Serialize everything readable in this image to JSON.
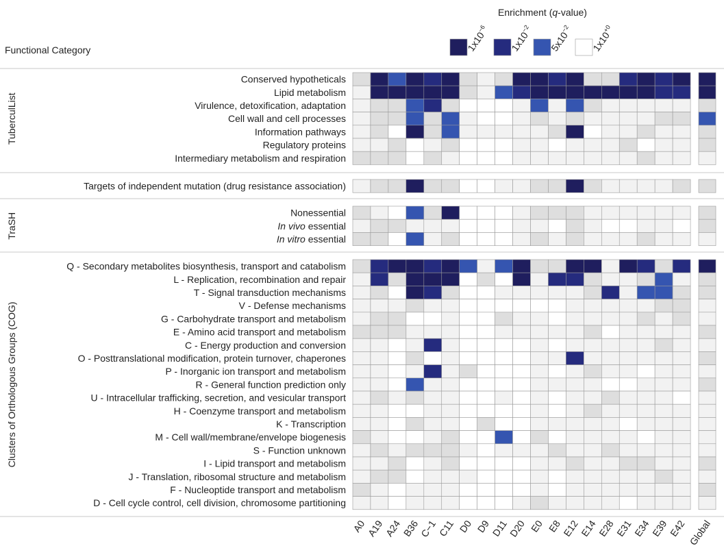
{
  "chart_data": {
    "type": "heatmap",
    "title": "Enrichment (q-value)",
    "title_prefix": "Enrichment (",
    "title_var": "q",
    "title_suffix": "-value)",
    "row_header": "Functional Category",
    "legend": [
      {
        "label": "1x10^-6",
        "base": "1x10",
        "exp": "−6",
        "color": "#1f1e5e"
      },
      {
        "label": "1x10^-2",
        "base": "1x10",
        "exp": "−2",
        "color": "#252b7e"
      },
      {
        "label": "5x10^-2",
        "base": "5x10",
        "exp": "−2",
        "color": "#3555b0"
      },
      {
        "label": "1x10^+0",
        "base": "1x10",
        "exp": "+0",
        "color": "#ffffff"
      }
    ],
    "columns": [
      "A0",
      "A19",
      "A24",
      "B36",
      "C−1",
      "C11",
      "D0",
      "D9",
      "D11",
      "D20",
      "E0",
      "E8",
      "E12",
      "E14",
      "E28",
      "E31",
      "E34",
      "E39",
      "E42"
    ],
    "global_column": "Global",
    "value_scale": "level: 0 = white, 1 = faint grey, 2 = light grey, 3 = mid blue (~5x10^-2), 4 = dark blue (~1x10^-2), 5 = darkest navy (~1x10^-6)",
    "groups": [
      {
        "name": "TuberculList",
        "rows": [
          {
            "label": "Conserved hypotheticals",
            "values": [
              2,
              5,
              3,
              5,
              4,
              5,
              2,
              1,
              2,
              5,
              5,
              4,
              5,
              2,
              2,
              4,
              5,
              4,
              5
            ],
            "global": 5
          },
          {
            "label": "Lipid metabolism",
            "values": [
              1,
              5,
              5,
              5,
              5,
              5,
              2,
              1,
              3,
              4,
              5,
              5,
              5,
              5,
              5,
              5,
              5,
              4,
              4
            ],
            "global": 5
          },
          {
            "label": "Virulence, detoxification, adaptation",
            "values": [
              1,
              2,
              2,
              3,
              4,
              2,
              0,
              0,
              0,
              1,
              3,
              1,
              3,
              2,
              1,
              1,
              1,
              1,
              1
            ],
            "global": 2
          },
          {
            "label": "Cell wall and cell processes",
            "values": [
              1,
              2,
              2,
              3,
              2,
              3,
              1,
              0,
              0,
              1,
              2,
              1,
              2,
              1,
              1,
              1,
              1,
              2,
              2
            ],
            "global": 3
          },
          {
            "label": "Information pathways",
            "values": [
              1,
              2,
              0,
              5,
              2,
              3,
              1,
              1,
              1,
              1,
              1,
              2,
              5,
              0,
              1,
              1,
              2,
              1,
              1
            ],
            "global": 2
          },
          {
            "label": "Regulatory proteins",
            "values": [
              1,
              1,
              2,
              0,
              1,
              2,
              0,
              0,
              0,
              1,
              1,
              0,
              1,
              1,
              1,
              2,
              0,
              1,
              1
            ],
            "global": 2
          },
          {
            "label": "Intermediary metabolism and respiration",
            "values": [
              2,
              2,
              2,
              0,
              2,
              1,
              0,
              0,
              0,
              1,
              1,
              1,
              1,
              1,
              1,
              1,
              2,
              1,
              1
            ],
            "global": 1
          }
        ]
      },
      {
        "name": "",
        "rows": [
          {
            "label": "Targets of independent mutation (drug resistance association)",
            "values": [
              1,
              2,
              2,
              5,
              2,
              2,
              0,
              0,
              1,
              1,
              2,
              2,
              5,
              2,
              1,
              1,
              1,
              1,
              2
            ],
            "global": 2
          }
        ]
      },
      {
        "name": "TraSH",
        "rows": [
          {
            "label": "Nonessential",
            "values": [
              2,
              1,
              0,
              3,
              2,
              5,
              0,
              0,
              0,
              1,
              2,
              2,
              2,
              1,
              1,
              1,
              1,
              1,
              1
            ],
            "global": 2
          },
          {
            "label": "essential",
            "italic_prefix": "In vivo",
            "values": [
              1,
              2,
              2,
              1,
              1,
              1,
              0,
              0,
              0,
              1,
              1,
              0,
              2,
              1,
              0,
              0,
              1,
              1,
              0
            ],
            "global": 2
          },
          {
            "label": "essential",
            "italic_prefix": "In vitro",
            "values": [
              2,
              2,
              0,
              3,
              1,
              2,
              0,
              0,
              0,
              1,
              2,
              1,
              2,
              1,
              1,
              1,
              2,
              1,
              1
            ],
            "global": 1
          }
        ]
      },
      {
        "name": "Clusters of Orthologous Groups (COG)",
        "rows": [
          {
            "label": "Q - Secondary metabolites biosynthesis, transport and catabolism",
            "values": [
              2,
              4,
              5,
              5,
              4,
              5,
              3,
              1,
              3,
              5,
              2,
              2,
              5,
              5,
              1,
              5,
              4,
              2,
              4
            ],
            "global": 5
          },
          {
            "label": "L - Replication, recombination and repair",
            "values": [
              1,
              4,
              2,
              5,
              5,
              5,
              0,
              2,
              0,
              5,
              1,
              4,
              4,
              2,
              1,
              1,
              2,
              3,
              1
            ],
            "global": 2
          },
          {
            "label": "T - Signal transduction mechanisms",
            "values": [
              1,
              2,
              0,
              5,
              4,
              2,
              0,
              0,
              1,
              1,
              1,
              1,
              1,
              2,
              4,
              1,
              3,
              3,
              2
            ],
            "global": 2
          },
          {
            "label": "V - Defense mechanisms",
            "values": [
              1,
              1,
              1,
              2,
              1,
              1,
              0,
              0,
              0,
              0,
              0,
              0,
              1,
              1,
              1,
              1,
              1,
              2,
              2
            ],
            "global": 1
          },
          {
            "label": "G - Carbohydrate transport and metabolism",
            "values": [
              1,
              2,
              2,
              0,
              0,
              1,
              0,
              0,
              2,
              1,
              1,
              0,
              1,
              1,
              1,
              1,
              2,
              1,
              2
            ],
            "global": 1
          },
          {
            "label": "E - Amino acid transport and metabolism",
            "values": [
              2,
              2,
              2,
              1,
              1,
              1,
              0,
              0,
              1,
              1,
              1,
              1,
              1,
              2,
              0,
              1,
              1,
              1,
              1
            ],
            "global": 2
          },
          {
            "label": "C - Energy production and conversion",
            "values": [
              1,
              1,
              0,
              1,
              4,
              1,
              0,
              0,
              0,
              0,
              1,
              0,
              1,
              1,
              1,
              1,
              1,
              2,
              1
            ],
            "global": 1
          },
          {
            "label": "O - Posttranslational modification, protein turnover, chaperones",
            "values": [
              1,
              1,
              0,
              2,
              0,
              1,
              0,
              0,
              0,
              0,
              1,
              1,
              4,
              1,
              1,
              1,
              1,
              1,
              1
            ],
            "global": 2
          },
          {
            "label": "P - Inorganic ion transport and metabolism",
            "values": [
              1,
              1,
              0,
              1,
              4,
              1,
              2,
              0,
              0,
              0,
              1,
              0,
              1,
              2,
              1,
              1,
              0,
              1,
              1
            ],
            "global": 1
          },
          {
            "label": "R - General function prediction only",
            "values": [
              1,
              1,
              0,
              3,
              1,
              1,
              0,
              0,
              0,
              0,
              1,
              1,
              1,
              1,
              0,
              0,
              1,
              1,
              1
            ],
            "global": 2
          },
          {
            "label": "U - Intracellular trafficking, secretion, and vesicular transport",
            "values": [
              1,
              2,
              1,
              2,
              1,
              1,
              0,
              0,
              1,
              0,
              1,
              0,
              1,
              1,
              2,
              1,
              1,
              1,
              0
            ],
            "global": 1
          },
          {
            "label": "H - Coenzyme transport and metabolism",
            "values": [
              1,
              1,
              0,
              0,
              1,
              1,
              0,
              0,
              0,
              0,
              1,
              0,
              1,
              2,
              1,
              1,
              1,
              1,
              1
            ],
            "global": 1
          },
          {
            "label": "K - Transcription",
            "values": [
              1,
              1,
              0,
              2,
              1,
              1,
              0,
              2,
              0,
              0,
              1,
              1,
              1,
              1,
              1,
              0,
              1,
              1,
              1
            ],
            "global": 1
          },
          {
            "label": "M - Cell wall/membrane/envelope biogenesis",
            "values": [
              2,
              1,
              0,
              0,
              1,
              2,
              0,
              0,
              3,
              0,
              2,
              0,
              1,
              1,
              1,
              1,
              0,
              1,
              1
            ],
            "global": 1
          },
          {
            "label": "S - Function unknown",
            "values": [
              1,
              2,
              1,
              2,
              2,
              2,
              1,
              0,
              1,
              1,
              1,
              2,
              1,
              1,
              2,
              1,
              1,
              1,
              1
            ],
            "global": 1
          },
          {
            "label": "I - Lipid transport and metabolism",
            "values": [
              1,
              1,
              2,
              0,
              1,
              2,
              0,
              0,
              0,
              0,
              1,
              1,
              2,
              1,
              1,
              2,
              2,
              1,
              1
            ],
            "global": 2
          },
          {
            "label": "J - Translation, ribosomal structure and metabolism",
            "values": [
              1,
              2,
              2,
              0,
              1,
              1,
              1,
              0,
              0,
              0,
              1,
              0,
              1,
              1,
              1,
              1,
              1,
              2,
              1
            ],
            "global": 1
          },
          {
            "label": "F - Nucleoptide transport and metabolism",
            "values": [
              2,
              1,
              0,
              1,
              1,
              1,
              0,
              0,
              0,
              0,
              1,
              0,
              1,
              1,
              1,
              1,
              1,
              1,
              1
            ],
            "global": 2
          },
          {
            "label": "D - Cell cycle control, cell division, chromosome partitioning",
            "values": [
              1,
              1,
              0,
              1,
              1,
              1,
              0,
              0,
              0,
              1,
              2,
              1,
              1,
              1,
              1,
              0,
              1,
              1,
              1
            ],
            "global": 1
          }
        ]
      }
    ]
  }
}
